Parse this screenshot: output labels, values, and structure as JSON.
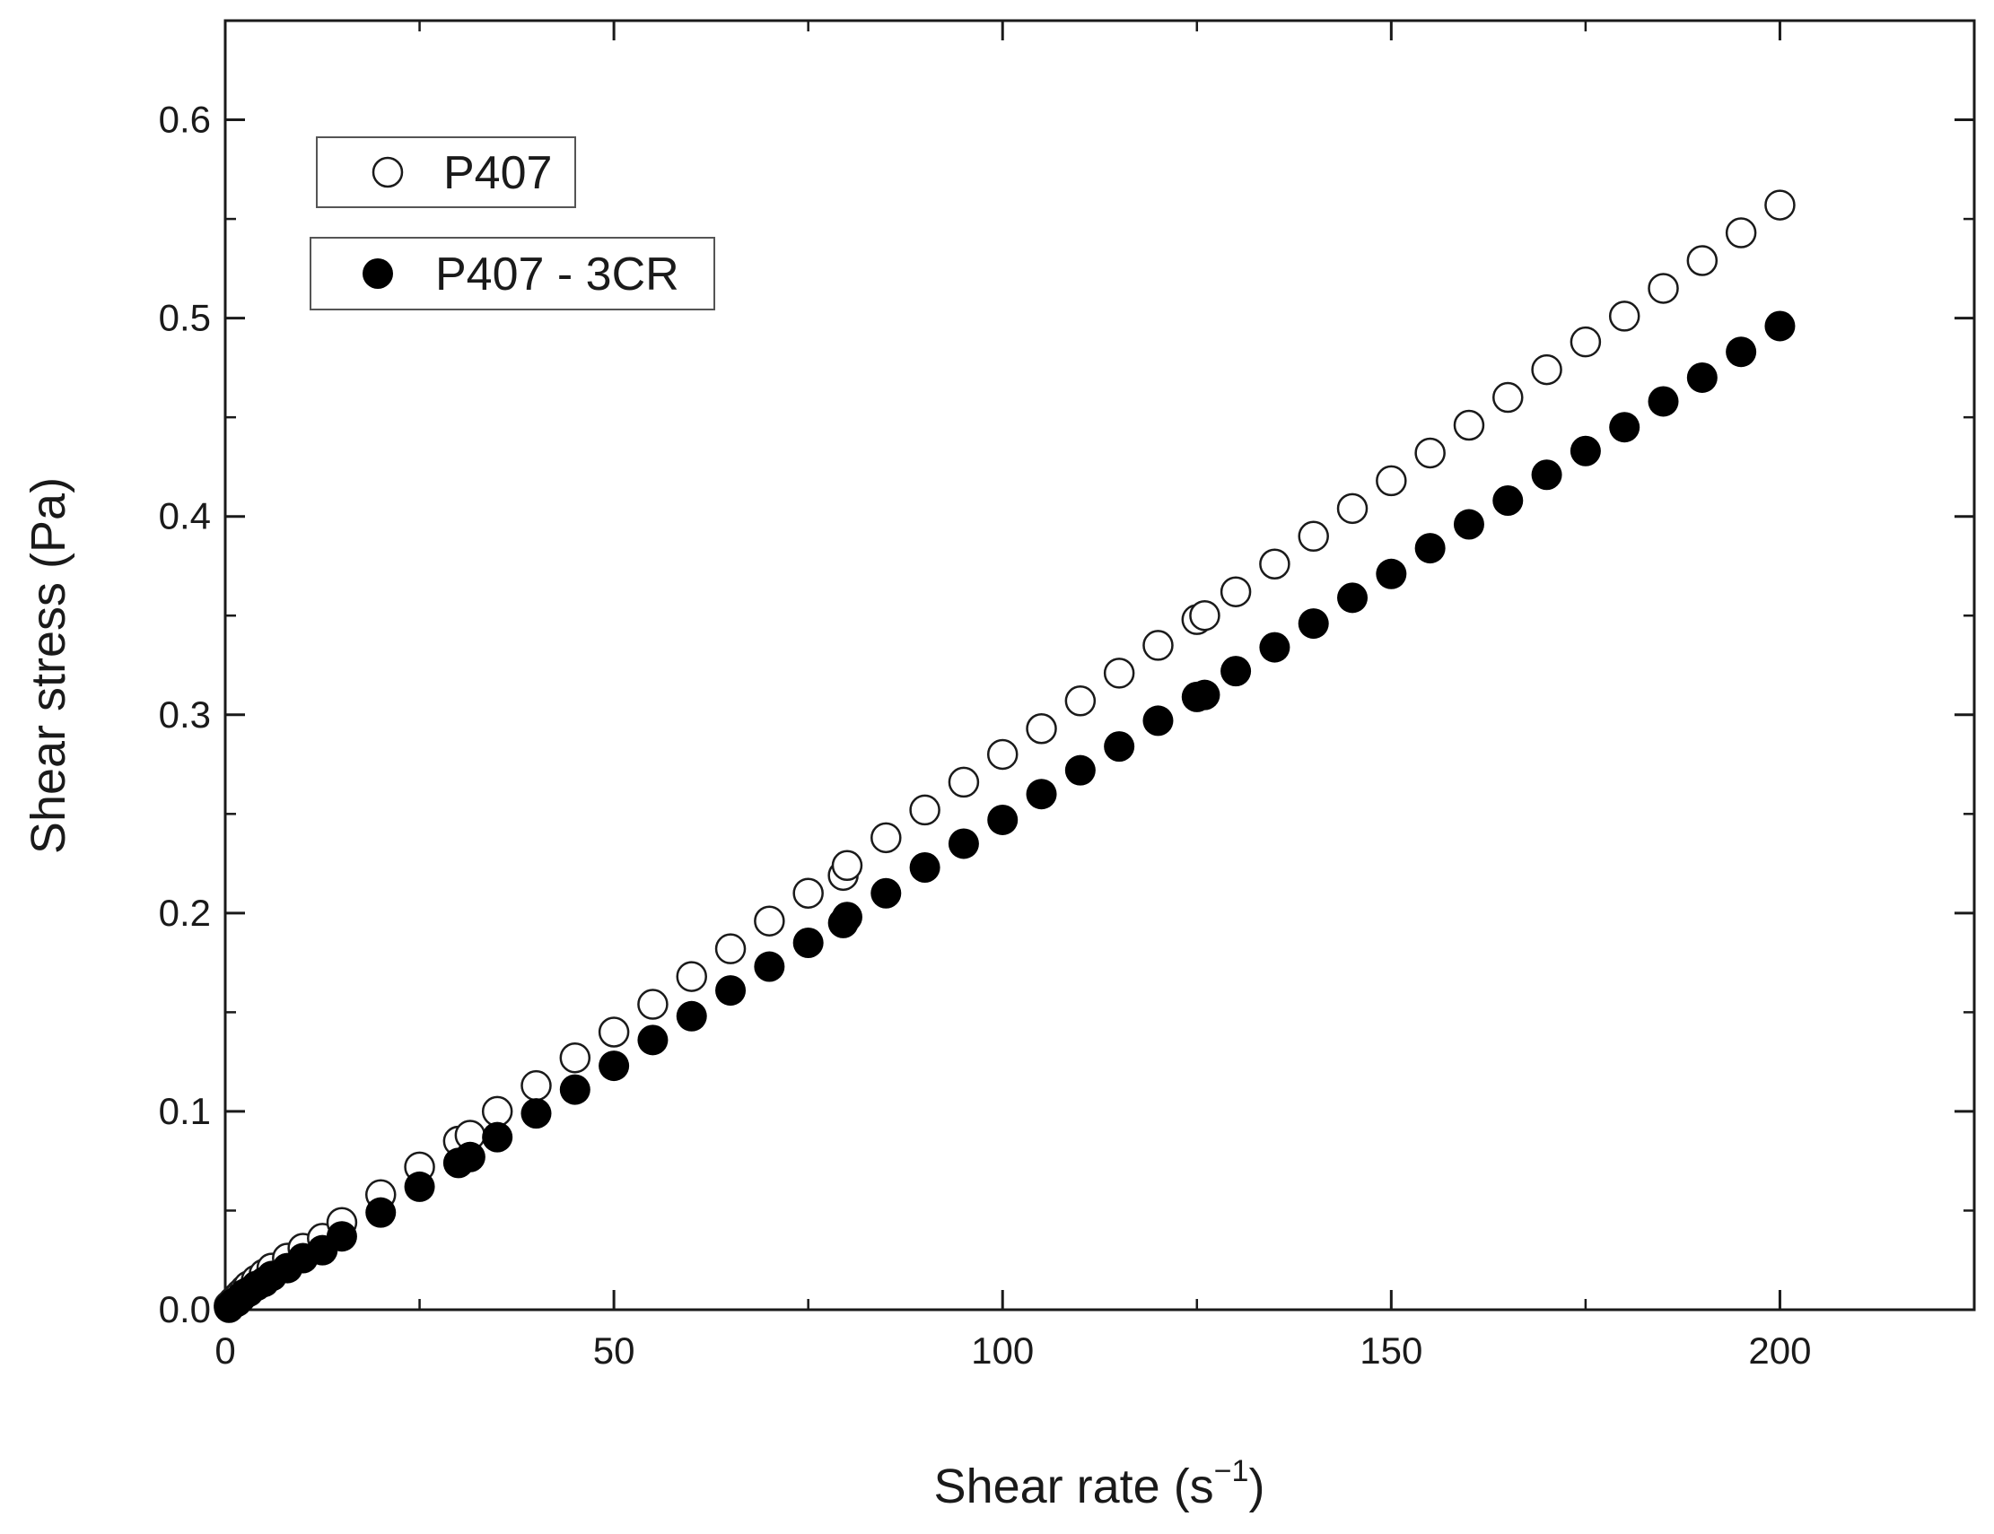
{
  "chart_data": {
    "type": "scatter",
    "title": "",
    "xlabel": "Shear rate (s",
    "xlabel_superscript": "−1",
    "xlabel_close": ")",
    "ylabel": "Shear stress (Pa)",
    "xlim": [
      0,
      225
    ],
    "ylim": [
      0,
      0.65
    ],
    "x_ticks": [
      0,
      50,
      100,
      150,
      200
    ],
    "x_tick_labels": [
      "0",
      "50",
      "100",
      "150",
      "200"
    ],
    "y_ticks": [
      0.0,
      0.1,
      0.2,
      0.3,
      0.4,
      0.5,
      0.6
    ],
    "y_tick_labels": [
      "0.0",
      "0.1",
      "0.2",
      "0.3",
      "0.4",
      "0.5",
      "0.6"
    ],
    "grid": false,
    "legend_position": "top-left",
    "series": [
      {
        "name": "P407",
        "marker": "open-circle",
        "x": [
          0.5,
          1,
          1.5,
          2,
          2.5,
          3,
          4,
          5,
          6,
          8,
          10,
          12.5,
          15,
          20,
          25,
          30,
          31.5,
          35,
          40,
          45,
          50,
          55,
          60,
          65,
          70,
          75,
          79.5,
          80,
          85,
          90,
          95,
          100,
          105,
          110,
          115,
          120,
          125,
          126,
          130,
          135,
          140,
          145,
          150,
          155,
          160,
          165,
          170,
          175,
          180,
          185,
          190,
          195,
          200
        ],
        "y": [
          0.002,
          0.004,
          0.006,
          0.008,
          0.01,
          0.012,
          0.015,
          0.018,
          0.021,
          0.026,
          0.031,
          0.036,
          0.044,
          0.058,
          0.072,
          0.085,
          0.088,
          0.1,
          0.113,
          0.127,
          0.14,
          0.154,
          0.168,
          0.182,
          0.196,
          0.21,
          0.219,
          0.224,
          0.238,
          0.252,
          0.266,
          0.28,
          0.293,
          0.307,
          0.321,
          0.335,
          0.348,
          0.35,
          0.362,
          0.376,
          0.39,
          0.404,
          0.418,
          0.432,
          0.446,
          0.46,
          0.474,
          0.488,
          0.501,
          0.515,
          0.529,
          0.543,
          0.557
        ]
      },
      {
        "name": "P407 - 3CR",
        "marker": "filled-circle",
        "x": [
          0.5,
          1,
          1.5,
          2,
          2.5,
          3,
          4,
          5,
          6,
          8,
          10,
          12.5,
          15,
          20,
          25,
          30,
          31.5,
          35,
          40,
          45,
          50,
          55,
          60,
          65,
          70,
          75,
          79.5,
          80,
          85,
          90,
          95,
          100,
          105,
          110,
          115,
          120,
          125,
          126,
          130,
          135,
          140,
          145,
          150,
          155,
          160,
          165,
          170,
          175,
          180,
          185,
          190,
          195,
          200
        ],
        "y": [
          0.001,
          0.003,
          0.004,
          0.006,
          0.008,
          0.009,
          0.012,
          0.014,
          0.017,
          0.021,
          0.026,
          0.03,
          0.037,
          0.049,
          0.062,
          0.074,
          0.077,
          0.087,
          0.099,
          0.111,
          0.123,
          0.136,
          0.148,
          0.161,
          0.173,
          0.185,
          0.195,
          0.198,
          0.21,
          0.223,
          0.235,
          0.247,
          0.26,
          0.272,
          0.284,
          0.297,
          0.309,
          0.31,
          0.322,
          0.334,
          0.346,
          0.359,
          0.371,
          0.384,
          0.396,
          0.408,
          0.421,
          0.433,
          0.445,
          0.458,
          0.47,
          0.483,
          0.496
        ]
      }
    ]
  }
}
